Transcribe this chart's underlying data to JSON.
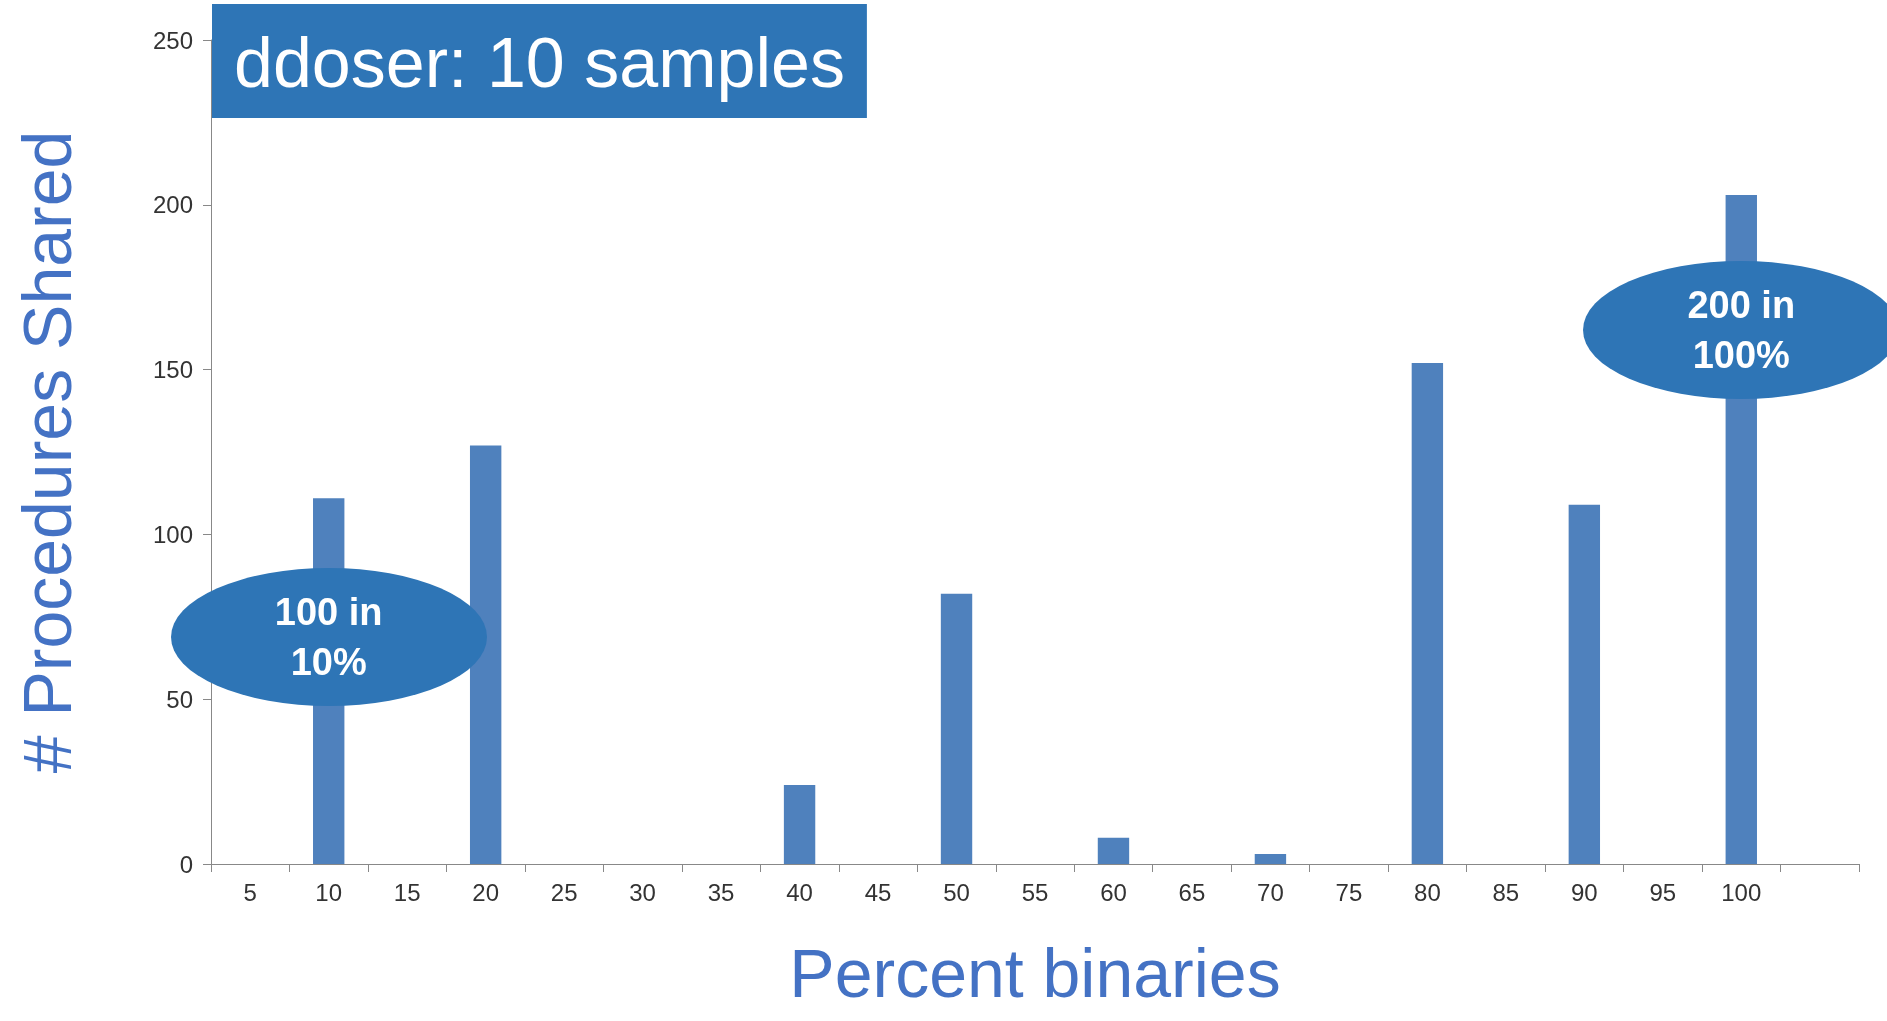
{
  "chart_data": {
    "type": "bar",
    "title": "ddoser: 10 samples",
    "xlabel": "Percent binaries",
    "ylabel": "# Procedures Shared",
    "categories": [
      "5",
      "10",
      "15",
      "20",
      "25",
      "30",
      "35",
      "40",
      "45",
      "50",
      "55",
      "60",
      "65",
      "70",
      "75",
      "80",
      "85",
      "90",
      "95",
      "100",
      null
    ],
    "values": [
      0,
      111,
      0,
      127,
      0,
      0,
      0,
      24,
      0,
      82,
      0,
      8,
      0,
      3,
      0,
      152,
      0,
      109,
      0,
      203,
      0
    ],
    "color": "#4f81bd",
    "ylim": [
      0,
      250
    ],
    "yticks": [
      0,
      50,
      100,
      150,
      200,
      250
    ],
    "annotations": [
      "100 in 10%",
      "200 in 100%"
    ],
    "grid": false
  }
}
